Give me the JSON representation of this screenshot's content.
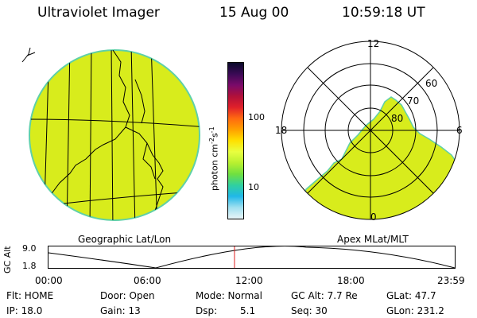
{
  "header": {
    "title": "Ultraviolet Imager",
    "date": "15 Aug 00",
    "time": "10:59:18 UT"
  },
  "left_panel": {
    "caption": "Geographic Lat/Lon"
  },
  "right_panel": {
    "caption": "Apex MLat/MLT",
    "mlt_labels": {
      "top": "12",
      "bottom": "0",
      "left": "18",
      "right": "6"
    },
    "mlat_labels": [
      "60",
      "70",
      "80"
    ]
  },
  "colorbar": {
    "unit_label": "photon cm",
    "unit_sup1": "-2",
    "unit_mid": "s",
    "unit_sup2": "-1",
    "ticks": [
      "100",
      "10"
    ],
    "colors": [
      "#0a0a2a",
      "#3a0a55",
      "#7a0a6a",
      "#b0103a",
      "#e0202a",
      "#ff6a10",
      "#ffa000",
      "#ffe000",
      "#e8ff40",
      "#b8f030",
      "#70e040",
      "#30d0a0",
      "#20b8e8",
      "#a0e0f0",
      "#e8f4f8"
    ]
  },
  "altitude_plot": {
    "ylabel": "GC Alt",
    "yticks": [
      "9.0",
      "1.8"
    ],
    "xticks": [
      "00:00",
      "06:00",
      "12:00",
      "18:00",
      "23:59"
    ],
    "current_time_hours": 10.99
  },
  "footer": {
    "flt": "Flt: HOME",
    "ip": "IP: 18.0",
    "door": "Door: Open",
    "gain": "Gain: 13",
    "mode": "Mode: Normal",
    "dsp_label": "Dsp:",
    "dsp_value": "5.1",
    "gcalt": "GC Alt: 7.7 Re",
    "seq": "Seq: 30",
    "glat": "GLat:  47.7",
    "glon": "GLon: 231.2"
  }
}
